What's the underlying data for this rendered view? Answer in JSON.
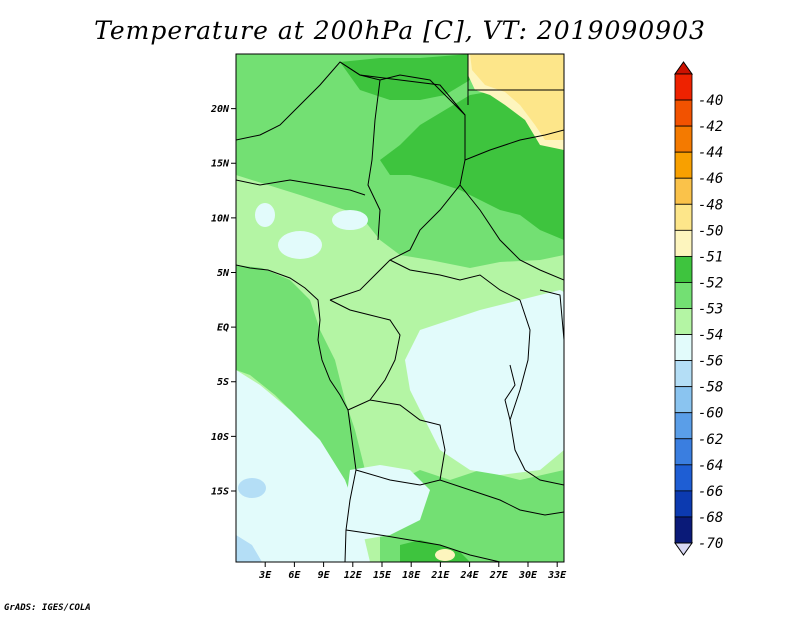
{
  "title": "Temperature at 200hPa [C], VT: 2019090903",
  "credit": "GrADS: IGES/COLA",
  "map": {
    "lat_range": [
      -21.5,
      25.0
    ],
    "lon_range": [
      0.0,
      33.7
    ],
    "lat_ticks": [
      {
        "label": "20N",
        "lat": 20
      },
      {
        "label": "15N",
        "lat": 15
      },
      {
        "label": "10N",
        "lat": 10
      },
      {
        "label": "5N",
        "lat": 5
      },
      {
        "label": "EQ",
        "lat": 0
      },
      {
        "label": "5S",
        "lat": -5
      },
      {
        "label": "10S",
        "lat": -10
      },
      {
        "label": "15S",
        "lat": -15
      }
    ],
    "lon_ticks": [
      {
        "label": "3E",
        "lon": 3
      },
      {
        "label": "6E",
        "lon": 6
      },
      {
        "label": "9E",
        "lon": 9
      },
      {
        "label": "12E",
        "lon": 12
      },
      {
        "label": "15E",
        "lon": 15
      },
      {
        "label": "18E",
        "lon": 18
      },
      {
        "label": "21E",
        "lon": 21
      },
      {
        "label": "24E",
        "lon": 24
      },
      {
        "label": "27E",
        "lon": 27
      },
      {
        "label": "30E",
        "lon": 30
      },
      {
        "label": "33E",
        "lon": 33
      }
    ]
  },
  "colorbar": {
    "bins": [
      {
        "label": "-40",
        "color": "#ee2200"
      },
      {
        "label": "-42",
        "color": "#f25200"
      },
      {
        "label": "-44",
        "color": "#f47a00"
      },
      {
        "label": "-46",
        "color": "#f8a000"
      },
      {
        "label": "-48",
        "color": "#fac24a"
      },
      {
        "label": "-50",
        "color": "#fde68a"
      },
      {
        "label": "-51",
        "color": "#fdf5be"
      },
      {
        "label": "-52",
        "color": "#3ec43e"
      },
      {
        "label": "-53",
        "color": "#73e073"
      },
      {
        "label": "-54",
        "color": "#b4f5a4"
      },
      {
        "label": "-56",
        "color": "#e2fbfb"
      },
      {
        "label": "-58",
        "color": "#b4def6"
      },
      {
        "label": "-60",
        "color": "#8ac4f0"
      },
      {
        "label": "-62",
        "color": "#5a9ee8"
      },
      {
        "label": "-64",
        "color": "#3a7ee0"
      },
      {
        "label": "-66",
        "color": "#1e5ed4"
      },
      {
        "label": "-68",
        "color": "#0c3ab0"
      },
      {
        "label": "-70",
        "color": "#0a1a78"
      }
    ],
    "top_arrow_color": "#cc1100",
    "bottom_arrow_color": "#d8d8f4"
  }
}
